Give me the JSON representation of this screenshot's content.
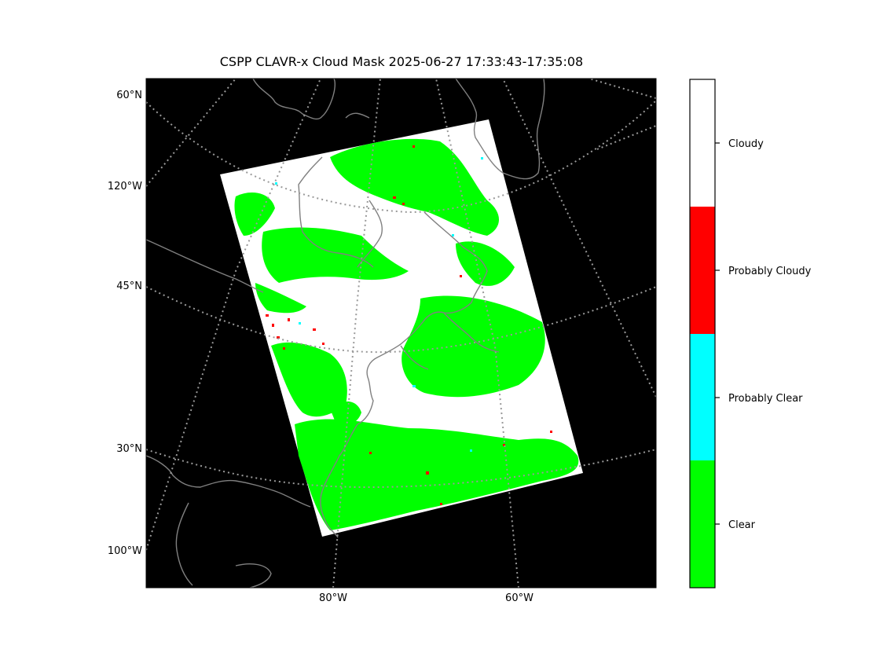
{
  "title": "CSPP CLAVR-x Cloud Mask 2025-06-27 17:33:43-17:35:08",
  "map": {
    "lat_labels": [
      "60°N",
      "45°N",
      "30°N"
    ],
    "lon_labels_left": [
      "120°W",
      "100°W"
    ],
    "lon_labels_bottom": [
      "80°W",
      "60°W"
    ],
    "background_color": "#000000",
    "coastline_color": "#808080"
  },
  "colorbar": {
    "categories": [
      {
        "label": "Cloudy",
        "color": "#ffffff"
      },
      {
        "label": "Probably Cloudy",
        "color": "#ff0000"
      },
      {
        "label": "Probably Clear",
        "color": "#00ffff"
      },
      {
        "label": "Clear",
        "color": "#00ff00"
      }
    ]
  }
}
